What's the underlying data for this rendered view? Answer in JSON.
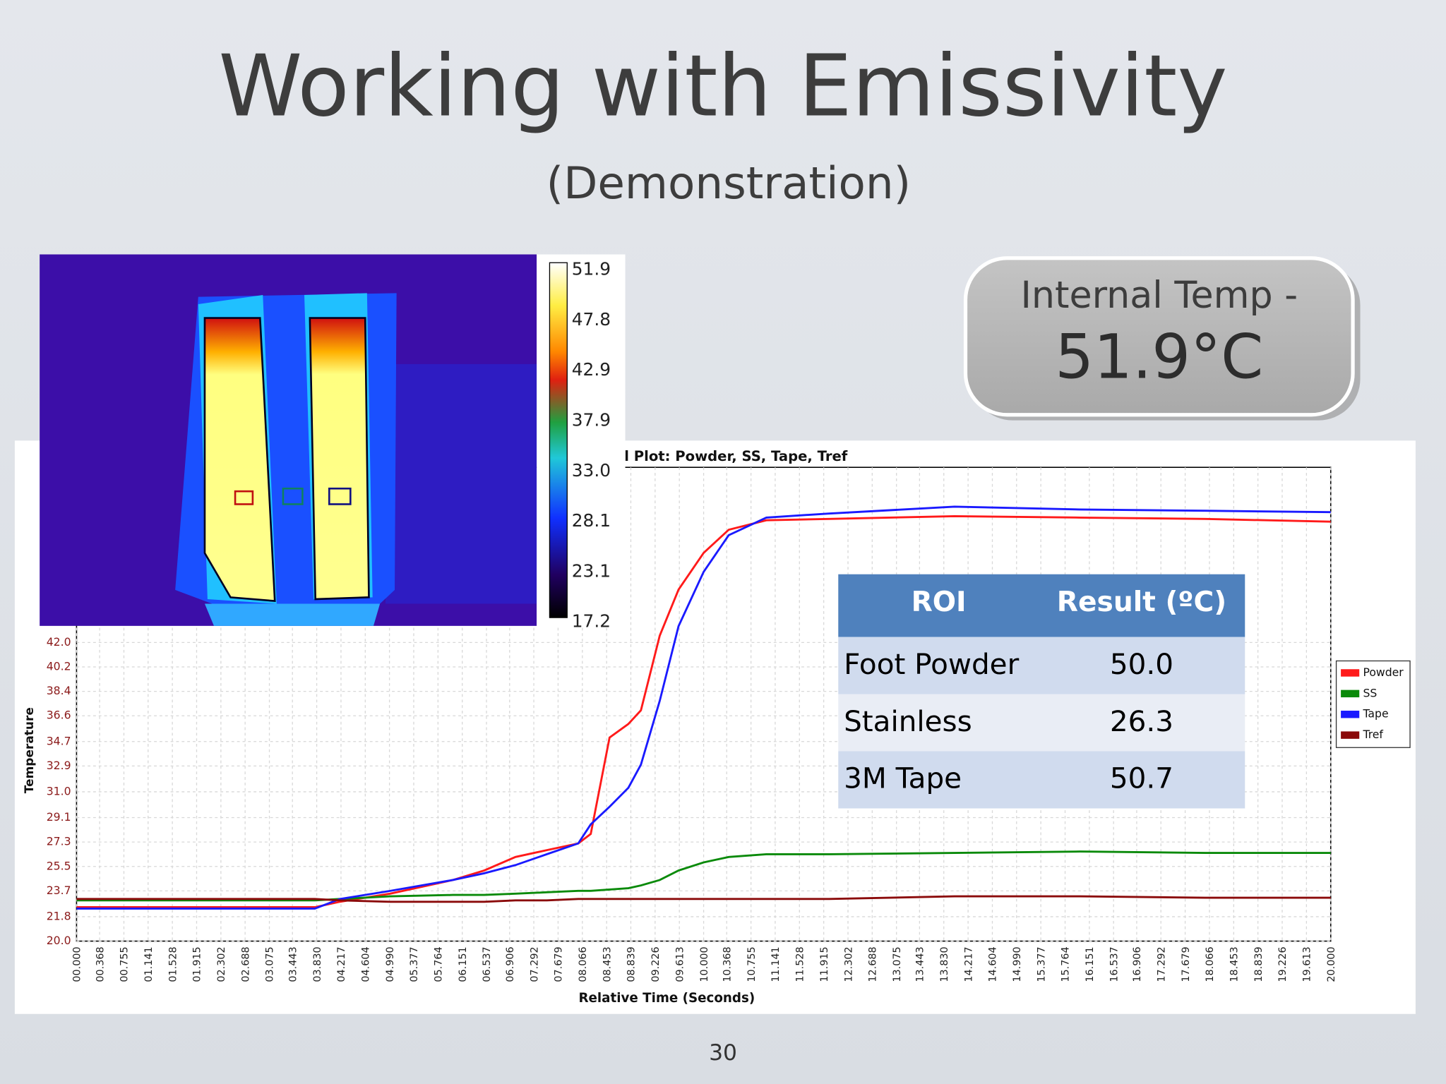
{
  "title": "Working with Emissivity",
  "subtitle": "(Demonstration)",
  "callout": {
    "label": "Internal Temp -",
    "value": "51.9°C"
  },
  "colorbar": {
    "labels": [
      "51.9",
      "47.8",
      "42.9",
      "37.9",
      "33.0",
      "28.1",
      "23.1",
      "17.2"
    ]
  },
  "table": {
    "header": [
      "ROI",
      "Result (ºC)"
    ],
    "rows": [
      [
        "Foot Powder",
        "50.0"
      ],
      [
        "Stainless",
        "26.3"
      ],
      [
        "3M Tape",
        "50.7"
      ]
    ]
  },
  "page_number": "30",
  "chart_data": {
    "type": "line",
    "title": "l Plot: Powder, SS, Tape, Tref",
    "x_label": "Relative Time (Seconds)",
    "y_label": "Temperature",
    "x": [
      0,
      3.8,
      4.2,
      5,
      6,
      6.5,
      7,
      7.5,
      8,
      8.2,
      8.5,
      8.8,
      9,
      9.3,
      9.6,
      10,
      10.4,
      11,
      12,
      14,
      16,
      18,
      20
    ],
    "series": [
      {
        "name": "Powder",
        "color": "#ff1a1a",
        "values": [
          22.5,
          22.5,
          22.9,
          23.5,
          24.5,
          25.2,
          26.2,
          26.7,
          27.2,
          27.9,
          35.0,
          36.0,
          37.0,
          42.5,
          45.9,
          48.6,
          50.3,
          51.0,
          51.1,
          51.3,
          51.2,
          51.1,
          50.9
        ]
      },
      {
        "name": "SS",
        "color": "#0a8a0a",
        "values": [
          23.0,
          23.0,
          23.1,
          23.3,
          23.4,
          23.4,
          23.5,
          23.6,
          23.7,
          23.7,
          23.8,
          23.9,
          24.1,
          24.5,
          25.2,
          25.8,
          26.2,
          26.4,
          26.4,
          26.5,
          26.6,
          26.5,
          26.5
        ]
      },
      {
        "name": "Tape",
        "color": "#1a1aff",
        "values": [
          22.4,
          22.4,
          23.1,
          23.7,
          24.5,
          25.0,
          25.6,
          26.4,
          27.2,
          28.6,
          29.9,
          31.3,
          33.0,
          37.7,
          43.2,
          47.2,
          49.9,
          51.2,
          51.5,
          52.0,
          51.8,
          51.7,
          51.6
        ]
      },
      {
        "name": "Tref",
        "color": "#8b0a0a",
        "values": [
          23.1,
          23.1,
          23.0,
          22.9,
          22.9,
          22.9,
          23.0,
          23.0,
          23.1,
          23.1,
          23.1,
          23.1,
          23.1,
          23.1,
          23.1,
          23.1,
          23.1,
          23.1,
          23.1,
          23.3,
          23.3,
          23.2,
          23.2
        ]
      }
    ],
    "xlim": [
      0,
      20
    ],
    "xticks": [
      {
        "value": 0,
        "label": "00.000"
      },
      {
        "value": 0.368,
        "label": "00.368"
      },
      {
        "value": 0.755,
        "label": "00.755"
      },
      {
        "value": 1.141,
        "label": "01.141"
      },
      {
        "value": 1.528,
        "label": "01.528"
      },
      {
        "value": 1.915,
        "label": "01.915"
      },
      {
        "value": 2.302,
        "label": "02.302"
      },
      {
        "value": 2.688,
        "label": "02.688"
      },
      {
        "value": 3.075,
        "label": "03.075"
      },
      {
        "value": 3.443,
        "label": "03.443"
      },
      {
        "value": 3.83,
        "label": "03.830"
      },
      {
        "value": 4.217,
        "label": "04.217"
      },
      {
        "value": 4.604,
        "label": "04.604"
      },
      {
        "value": 4.99,
        "label": "04.990"
      },
      {
        "value": 5.377,
        "label": "05.377"
      },
      {
        "value": 5.764,
        "label": "05.764"
      },
      {
        "value": 6.151,
        "label": "06.151"
      },
      {
        "value": 6.537,
        "label": "06.537"
      },
      {
        "value": 6.906,
        "label": "06.906"
      },
      {
        "value": 7.292,
        "label": "07.292"
      },
      {
        "value": 7.679,
        "label": "07.679"
      },
      {
        "value": 8.066,
        "label": "08.066"
      },
      {
        "value": 8.453,
        "label": "08.453"
      },
      {
        "value": 8.839,
        "label": "08.839"
      },
      {
        "value": 9.226,
        "label": "09.226"
      },
      {
        "value": 9.613,
        "label": "09.613"
      },
      {
        "value": 10,
        "label": "10.000"
      },
      {
        "value": 10.368,
        "label": "10.368"
      },
      {
        "value": 10.755,
        "label": "10.755"
      },
      {
        "value": 11.141,
        "label": "11.141"
      },
      {
        "value": 11.528,
        "label": "11.528"
      },
      {
        "value": 11.915,
        "label": "11.915"
      },
      {
        "value": 12.302,
        "label": "12.302"
      },
      {
        "value": 12.688,
        "label": "12.688"
      },
      {
        "value": 13.075,
        "label": "13.075"
      },
      {
        "value": 13.443,
        "label": "13.443"
      },
      {
        "value": 13.83,
        "label": "13.830"
      },
      {
        "value": 14.217,
        "label": "14.217"
      },
      {
        "value": 14.604,
        "label": "14.604"
      },
      {
        "value": 14.99,
        "label": "14.990"
      },
      {
        "value": 15.377,
        "label": "15.377"
      },
      {
        "value": 15.764,
        "label": "15.764"
      },
      {
        "value": 16.151,
        "label": "16.151"
      },
      {
        "value": 16.537,
        "label": "16.537"
      },
      {
        "value": 16.906,
        "label": "16.906"
      },
      {
        "value": 17.292,
        "label": "17.292"
      },
      {
        "value": 17.679,
        "label": "17.679"
      },
      {
        "value": 18.066,
        "label": "18.066"
      },
      {
        "value": 18.453,
        "label": "18.453"
      },
      {
        "value": 18.839,
        "label": "18.839"
      },
      {
        "value": 19.226,
        "label": "19.226"
      },
      {
        "value": 19.613,
        "label": "19.613"
      },
      {
        "value": 20,
        "label": "20.000"
      }
    ],
    "ylim": [
      20,
      54.9
    ],
    "yticks": [
      {
        "value": 20,
        "label": "20.0"
      },
      21.8,
      23.7,
      25.5,
      27.3,
      29.1,
      {
        "value": 31,
        "label": "31.0"
      },
      32.9,
      34.7,
      36.6,
      38.4,
      40.2,
      {
        "value": 42,
        "label": "42.0"
      }
    ],
    "grid": true,
    "legend": "right"
  }
}
